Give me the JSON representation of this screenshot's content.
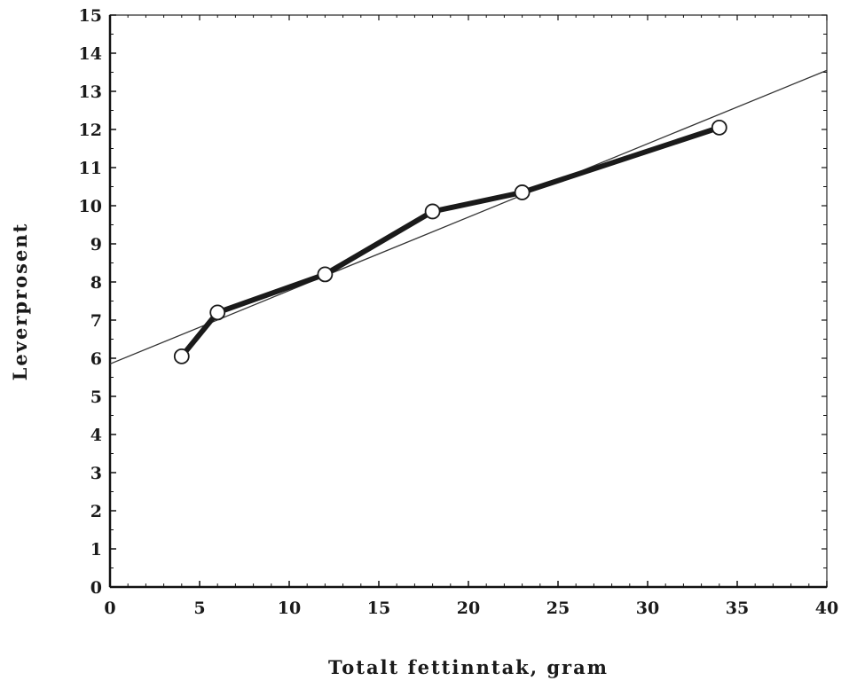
{
  "chart_data": {
    "type": "line",
    "title": "",
    "xlabel": "Totalt fettinntak, gram",
    "ylabel": "Leverprosent",
    "xlim": [
      0,
      40
    ],
    "ylim": [
      0,
      15
    ],
    "x_ticks": [
      0,
      5,
      10,
      15,
      20,
      25,
      30,
      35,
      40
    ],
    "y_ticks": [
      0,
      1,
      2,
      3,
      4,
      5,
      6,
      7,
      8,
      9,
      10,
      11,
      12,
      13,
      14,
      15
    ],
    "grid": false,
    "legend": "none",
    "series": [
      {
        "marker": "open-circle",
        "line": "thick",
        "color": "#1a1a1a",
        "x": [
          4,
          6,
          12,
          18,
          23,
          34
        ],
        "y": [
          6.05,
          7.2,
          8.2,
          9.85,
          10.35,
          12.05
        ]
      }
    ],
    "trendline": {
      "type": "linear",
      "color": "#333333",
      "x": [
        0,
        40
      ],
      "y": [
        5.85,
        13.55
      ]
    }
  }
}
